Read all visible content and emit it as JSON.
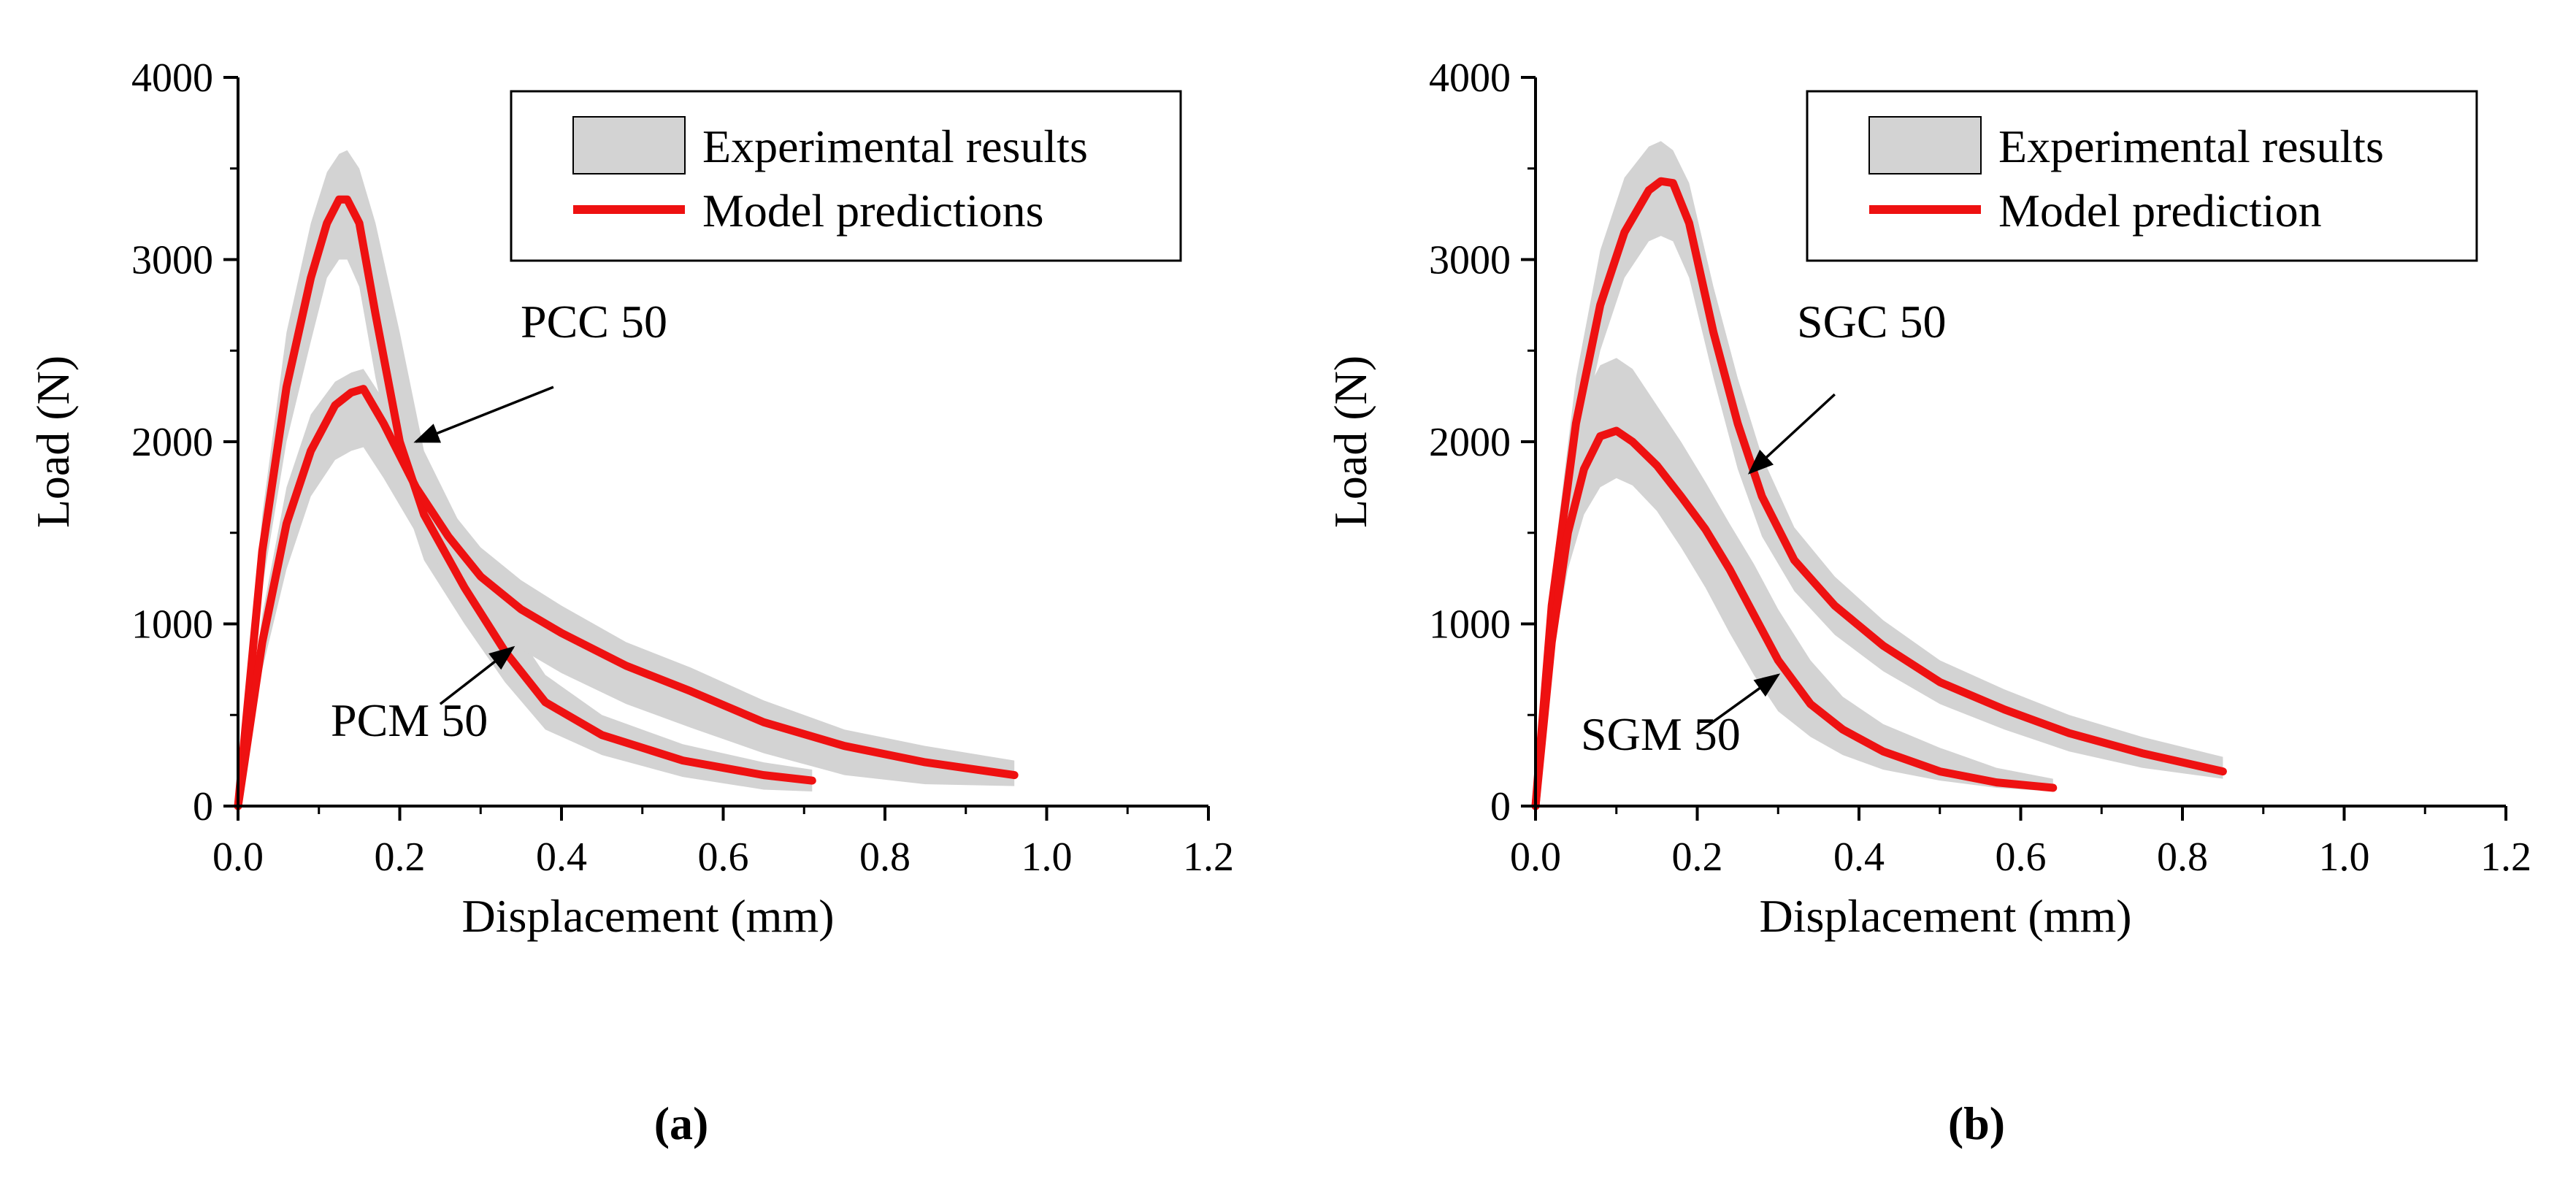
{
  "chart_data": [
    {
      "type": "line",
      "panel_label": "(a)",
      "xlabel": "Displacement (mm)",
      "ylabel": "Load (N)",
      "xlim": [
        0,
        1.2
      ],
      "ylim": [
        0,
        4000
      ],
      "xticks": [
        0.0,
        0.2,
        0.4,
        0.6,
        0.8,
        1.0,
        1.2
      ],
      "xtick_labels": [
        "0.0",
        "0.2",
        "0.4",
        "0.6",
        "0.8",
        "1.0",
        "1.2"
      ],
      "yticks": [
        0,
        1000,
        2000,
        3000,
        4000
      ],
      "ytick_labels": [
        "0",
        "1000",
        "2000",
        "3000",
        "4000"
      ],
      "legend": {
        "position": "top-right",
        "band_label": "Experimental results",
        "line_label": "Model predictions"
      },
      "annotations": [
        {
          "text": "PCC 50",
          "arrow_to": [
            0.22,
            2000
          ],
          "arrow_from": [
            0.39,
            2300
          ]
        },
        {
          "text": "PCM 50",
          "arrow_to": [
            0.34,
            870
          ],
          "arrow_from": [
            0.25,
            560
          ]
        }
      ],
      "series": [
        {
          "name": "PCC 50 model",
          "color": "#ee1111",
          "x": [
            0,
            0.03,
            0.06,
            0.09,
            0.11,
            0.125,
            0.135,
            0.15,
            0.17,
            0.2,
            0.23,
            0.28,
            0.33,
            0.38,
            0.45,
            0.55,
            0.65,
            0.71
          ],
          "y": [
            0,
            1400,
            2300,
            2900,
            3200,
            3330,
            3330,
            3200,
            2700,
            2000,
            1600,
            1200,
            850,
            570,
            390,
            250,
            170,
            140
          ],
          "band_lower": [
            0,
            1200,
            2000,
            2550,
            2900,
            3000,
            3000,
            2850,
            2350,
            1750,
            1350,
            1000,
            680,
            420,
            280,
            160,
            90,
            80
          ],
          "band_upper": [
            0,
            1600,
            2600,
            3200,
            3480,
            3580,
            3600,
            3500,
            3200,
            2600,
            1950,
            1500,
            1050,
            720,
            500,
            340,
            240,
            200
          ]
        },
        {
          "name": "PCM 50 model",
          "color": "#ee1111",
          "x": [
            0,
            0.03,
            0.06,
            0.09,
            0.12,
            0.14,
            0.155,
            0.18,
            0.22,
            0.26,
            0.3,
            0.35,
            0.4,
            0.48,
            0.56,
            0.65,
            0.75,
            0.85,
            0.96
          ],
          "y": [
            0,
            900,
            1550,
            1950,
            2200,
            2270,
            2290,
            2100,
            1750,
            1480,
            1260,
            1080,
            950,
            770,
            630,
            460,
            330,
            240,
            170
          ],
          "band_lower": [
            0,
            750,
            1300,
            1700,
            1900,
            1950,
            1970,
            1800,
            1500,
            1250,
            1050,
            860,
            730,
            560,
            430,
            290,
            170,
            120,
            110
          ],
          "band_upper": [
            0,
            1050,
            1750,
            2150,
            2330,
            2380,
            2400,
            2230,
            1880,
            1640,
            1420,
            1240,
            1100,
            900,
            760,
            580,
            420,
            330,
            250
          ]
        }
      ]
    },
    {
      "type": "line",
      "panel_label": "(b)",
      "xlabel": "Displacement (mm)",
      "ylabel": "Load (N)",
      "xlim": [
        0,
        1.2
      ],
      "ylim": [
        0,
        4000
      ],
      "xticks": [
        0.0,
        0.2,
        0.4,
        0.6,
        0.8,
        1.0,
        1.2
      ],
      "xtick_labels": [
        "0.0",
        "0.2",
        "0.4",
        "0.6",
        "0.8",
        "1.0",
        "1.2"
      ],
      "yticks": [
        0,
        1000,
        2000,
        3000,
        4000
      ],
      "ytick_labels": [
        "0",
        "1000",
        "2000",
        "3000",
        "4000"
      ],
      "legend": {
        "position": "top-right",
        "band_label": "Experimental results",
        "line_label": "Model prediction"
      },
      "annotations": [
        {
          "text": "SGC 50",
          "arrow_to": [
            0.265,
            1830
          ],
          "arrow_from": [
            0.37,
            2260
          ]
        },
        {
          "text": "SGM 50",
          "arrow_to": [
            0.3,
            720
          ],
          "arrow_from": [
            0.2,
            400
          ]
        }
      ],
      "series": [
        {
          "name": "SGC 50 model",
          "color": "#ee1111",
          "x": [
            0,
            0.02,
            0.05,
            0.08,
            0.11,
            0.14,
            0.155,
            0.17,
            0.19,
            0.22,
            0.25,
            0.28,
            0.32,
            0.37,
            0.43,
            0.5,
            0.58,
            0.66,
            0.75,
            0.85
          ],
          "y": [
            0,
            1100,
            2100,
            2750,
            3150,
            3380,
            3430,
            3420,
            3200,
            2600,
            2100,
            1700,
            1350,
            1100,
            880,
            680,
            530,
            400,
            290,
            190
          ],
          "band_lower": [
            0,
            1000,
            1900,
            2500,
            2900,
            3100,
            3130,
            3100,
            2900,
            2350,
            1850,
            1480,
            1180,
            940,
            740,
            560,
            420,
            300,
            210,
            150
          ],
          "band_upper": [
            0,
            1250,
            2350,
            3050,
            3450,
            3620,
            3650,
            3600,
            3420,
            2850,
            2350,
            1920,
            1530,
            1260,
            1020,
            800,
            640,
            500,
            380,
            270
          ]
        },
        {
          "name": "SGM 50 model",
          "color": "#ee1111",
          "x": [
            0,
            0.02,
            0.04,
            0.06,
            0.08,
            0.1,
            0.12,
            0.15,
            0.18,
            0.21,
            0.24,
            0.27,
            0.3,
            0.34,
            0.38,
            0.43,
            0.5,
            0.57,
            0.64
          ],
          "y": [
            0,
            900,
            1500,
            1850,
            2030,
            2060,
            2000,
            1870,
            1700,
            1520,
            1300,
            1050,
            800,
            560,
            420,
            300,
            190,
            130,
            100
          ],
          "band_lower": [
            0,
            800,
            1300,
            1600,
            1750,
            1800,
            1760,
            1620,
            1420,
            1200,
            950,
            720,
            520,
            380,
            280,
            200,
            140,
            100,
            80
          ],
          "band_upper": [
            0,
            1050,
            1800,
            2250,
            2420,
            2460,
            2400,
            2200,
            2000,
            1780,
            1550,
            1330,
            1080,
            800,
            600,
            450,
            320,
            210,
            150
          ]
        }
      ]
    }
  ]
}
